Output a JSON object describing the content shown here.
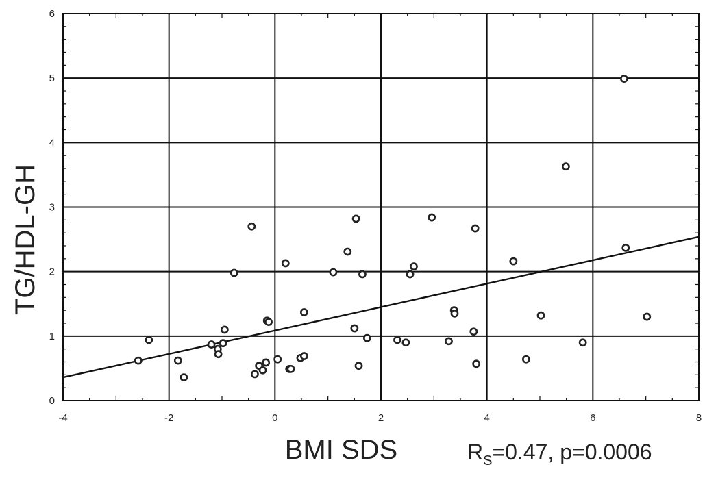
{
  "chart_data": {
    "type": "scatter",
    "xlabel": "BMI SDS",
    "ylabel": "TG/HDL-GH",
    "xlim": [
      -4,
      8
    ],
    "ylim": [
      0,
      6
    ],
    "x_ticks": [
      -4,
      -2,
      0,
      2,
      4,
      6,
      8
    ],
    "y_ticks": [
      0,
      1,
      2,
      3,
      4,
      5,
      6
    ],
    "x_tick_labels": [
      "-4",
      "-2",
      "0",
      "2",
      "4",
      "6",
      "8"
    ],
    "y_tick_labels": [
      "0",
      "1",
      "2",
      "3",
      "4",
      "5",
      "6"
    ],
    "grid": true,
    "annotation": {
      "prefix": "R",
      "subscript": "S",
      "text": "=0.47, p=0.0006"
    },
    "trend_line": {
      "x": [
        -4,
        8
      ],
      "y": [
        0.36,
        2.54
      ]
    },
    "points": [
      {
        "x": -2.58,
        "y": 0.62
      },
      {
        "x": -2.38,
        "y": 0.94
      },
      {
        "x": -1.83,
        "y": 0.62
      },
      {
        "x": -1.72,
        "y": 0.36
      },
      {
        "x": -1.2,
        "y": 0.87
      },
      {
        "x": -1.08,
        "y": 0.8
      },
      {
        "x": -1.07,
        "y": 0.72
      },
      {
        "x": -0.98,
        "y": 0.89
      },
      {
        "x": -0.95,
        "y": 1.1
      },
      {
        "x": -0.77,
        "y": 1.98
      },
      {
        "x": -0.44,
        "y": 2.7
      },
      {
        "x": -0.38,
        "y": 0.41
      },
      {
        "x": -0.3,
        "y": 0.54
      },
      {
        "x": -0.23,
        "y": 0.47
      },
      {
        "x": -0.17,
        "y": 0.59
      },
      {
        "x": -0.15,
        "y": 1.24
      },
      {
        "x": -0.12,
        "y": 1.22
      },
      {
        "x": 0.05,
        "y": 0.64
      },
      {
        "x": 0.2,
        "y": 2.13
      },
      {
        "x": 0.27,
        "y": 0.49
      },
      {
        "x": 0.3,
        "y": 0.49
      },
      {
        "x": 0.48,
        "y": 0.66
      },
      {
        "x": 0.55,
        "y": 0.69
      },
      {
        "x": 0.55,
        "y": 1.37
      },
      {
        "x": 1.1,
        "y": 1.99
      },
      {
        "x": 1.37,
        "y": 2.31
      },
      {
        "x": 1.5,
        "y": 1.12
      },
      {
        "x": 1.53,
        "y": 2.82
      },
      {
        "x": 1.58,
        "y": 0.54
      },
      {
        "x": 1.65,
        "y": 1.96
      },
      {
        "x": 1.74,
        "y": 0.97
      },
      {
        "x": 2.31,
        "y": 0.94
      },
      {
        "x": 2.47,
        "y": 0.9
      },
      {
        "x": 2.55,
        "y": 1.96
      },
      {
        "x": 2.62,
        "y": 2.08
      },
      {
        "x": 2.96,
        "y": 2.84
      },
      {
        "x": 3.28,
        "y": 0.92
      },
      {
        "x": 3.38,
        "y": 1.4
      },
      {
        "x": 3.39,
        "y": 1.35
      },
      {
        "x": 3.75,
        "y": 1.07
      },
      {
        "x": 3.78,
        "y": 2.67
      },
      {
        "x": 3.8,
        "y": 0.57
      },
      {
        "x": 4.5,
        "y": 2.16
      },
      {
        "x": 4.74,
        "y": 0.64
      },
      {
        "x": 5.02,
        "y": 1.32
      },
      {
        "x": 5.49,
        "y": 3.63
      },
      {
        "x": 5.81,
        "y": 0.9
      },
      {
        "x": 6.59,
        "y": 4.99
      },
      {
        "x": 6.62,
        "y": 2.37
      },
      {
        "x": 7.02,
        "y": 1.3
      }
    ],
    "colors": {
      "axis": "#111111",
      "grid": "#111111",
      "marker": "#222222",
      "text": "#222222"
    }
  }
}
